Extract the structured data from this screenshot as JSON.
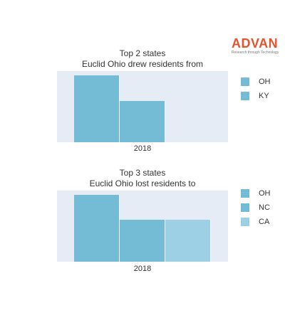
{
  "logo": {
    "name": "ADVAN",
    "tagline": "Research through Technology"
  },
  "chart_data": [
    {
      "type": "bar",
      "title": [
        "Top 2 states",
        "Euclid Ohio drew residents from"
      ],
      "categories": [
        "2018"
      ],
      "series": [
        {
          "name": "OH",
          "values": [
            100
          ],
          "color": "#74bcd6"
        },
        {
          "name": "KY",
          "values": [
            62
          ],
          "color": "#74bcd6"
        }
      ],
      "ylim": [
        0,
        106
      ],
      "xlabel": "2018",
      "legend": "right"
    },
    {
      "type": "bar",
      "title": [
        "Top 3 states",
        "Euclid Ohio lost residents to"
      ],
      "categories": [
        "2018"
      ],
      "series": [
        {
          "name": "OH",
          "values": [
            100
          ],
          "color": "#74bcd6"
        },
        {
          "name": "NC",
          "values": [
            63
          ],
          "color": "#74bcd6"
        },
        {
          "name": "CA",
          "values": [
            63
          ],
          "color": "#9dd0e4"
        }
      ],
      "ylim": [
        0,
        106
      ],
      "xlabel": "2018",
      "legend": "right"
    }
  ]
}
